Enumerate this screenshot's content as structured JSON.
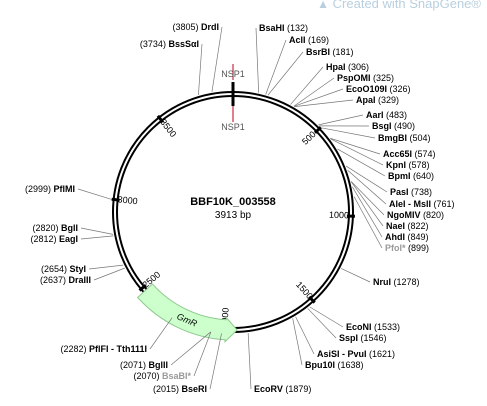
{
  "watermark": {
    "icon": "snapgene-logo-icon",
    "text": "Created with SnapGene®"
  },
  "plasmid": {
    "name": "BBF10K_003558",
    "size_text": "3913 bp",
    "length": 3913
  },
  "ticks": [
    {
      "pos": 500,
      "label": "500"
    },
    {
      "pos": 1000,
      "label": "1000"
    },
    {
      "pos": 1500,
      "label": "1500"
    },
    {
      "pos": 2000,
      "label": "2000"
    },
    {
      "pos": 2500,
      "label": "2500"
    },
    {
      "pos": 3000,
      "label": "3000"
    },
    {
      "pos": 3500,
      "label": "3500"
    }
  ],
  "features": [
    {
      "name": "GmR",
      "start": 1935,
      "end": 2480,
      "direction": "reverse",
      "color": "#ccffcc",
      "stroke": "#8fc98f"
    }
  ],
  "sites": [
    {
      "name": "NSP1",
      "pos": 0,
      "outside": true
    },
    {
      "name": "NSP1",
      "pos": 0,
      "outside": false
    }
  ],
  "site_color": "#c0001a",
  "enzymes": [
    {
      "id": "drdI",
      "name": "DrdI",
      "pos_text": "(3805)",
      "pos": 3805,
      "side": "left"
    },
    {
      "id": "bsssai",
      "name": "BssSαI",
      "pos_text": "(3734)",
      "pos": 3734,
      "side": "left"
    },
    {
      "id": "bsahi",
      "name": "BsaHI",
      "pos_text": "(132)",
      "pos": 132,
      "side": "right"
    },
    {
      "id": "acli",
      "name": "AclI",
      "pos_text": "(169)",
      "pos": 169,
      "side": "right"
    },
    {
      "id": "bsrbi",
      "name": "BsrBI",
      "pos_text": "(181)",
      "pos": 181,
      "side": "right"
    },
    {
      "id": "hpai",
      "name": "HpaI",
      "pos_text": "(306)",
      "pos": 306,
      "side": "right"
    },
    {
      "id": "psppomi",
      "name": "PspOMI",
      "pos_text": "(325)",
      "pos": 325,
      "side": "right"
    },
    {
      "id": "eco0109i",
      "name": "EcoO109I",
      "pos_text": "(326)",
      "pos": 326,
      "side": "right"
    },
    {
      "id": "apai",
      "name": "ApaI",
      "pos_text": "(329)",
      "pos": 329,
      "side": "right"
    },
    {
      "id": "aari",
      "name": "AarI",
      "pos_text": "(483)",
      "pos": 483,
      "side": "right"
    },
    {
      "id": "bsgi",
      "name": "BsgI",
      "pos_text": "(490)",
      "pos": 490,
      "side": "right"
    },
    {
      "id": "bmgbi",
      "name": "BmgBI",
      "pos_text": "(504)",
      "pos": 504,
      "side": "right"
    },
    {
      "id": "acc65i",
      "name": "Acc65I",
      "pos_text": "(574)",
      "pos": 574,
      "side": "right"
    },
    {
      "id": "kpni",
      "name": "KpnI",
      "pos_text": "(578)",
      "pos": 578,
      "side": "right"
    },
    {
      "id": "bpmi",
      "name": "BpmI",
      "pos_text": "(640)",
      "pos": 640,
      "side": "right"
    },
    {
      "id": "pasi",
      "name": "PasI",
      "pos_text": "(738)",
      "pos": 738,
      "side": "right"
    },
    {
      "id": "alei",
      "name": "AleI - MslI",
      "pos_text": "(761)",
      "pos": 761,
      "side": "right"
    },
    {
      "id": "ngomiv",
      "name": "NgoMIV",
      "pos_text": "(820)",
      "pos": 820,
      "side": "right"
    },
    {
      "id": "naei",
      "name": "NaeI",
      "pos_text": "(822)",
      "pos": 822,
      "side": "right"
    },
    {
      "id": "ahdi",
      "name": "AhdI",
      "pos_text": "(849)",
      "pos": 849,
      "side": "right"
    },
    {
      "id": "pfoi",
      "name": "PfoI*",
      "pos_text": "(899)",
      "pos": 899,
      "side": "right",
      "muted": true
    },
    {
      "id": "nrui",
      "name": "NruI",
      "pos_text": "(1278)",
      "pos": 1278,
      "side": "right"
    },
    {
      "id": "ecoNi",
      "name": "EcoNI",
      "pos_text": "(1533)",
      "pos": 1533,
      "side": "right"
    },
    {
      "id": "sspi",
      "name": "SspI",
      "pos_text": "(1546)",
      "pos": 1546,
      "side": "right"
    },
    {
      "id": "asisi",
      "name": "AsiSI - PvuI",
      "pos_text": "(1621)",
      "pos": 1621,
      "side": "right"
    },
    {
      "id": "bpu10i",
      "name": "Bpu10I",
      "pos_text": "(1638)",
      "pos": 1638,
      "side": "right"
    },
    {
      "id": "ecorv",
      "name": "EcoRV",
      "pos_text": "(1879)",
      "pos": 1879,
      "side": "right"
    },
    {
      "id": "bseri",
      "name": "BseRI",
      "pos_text": "(2015)",
      "pos": 2015,
      "side": "left"
    },
    {
      "id": "bsabi",
      "name": "BsaBI*",
      "pos_text": "(2070)",
      "pos": 2070,
      "side": "left",
      "muted": true
    },
    {
      "id": "bglii",
      "name": "BglII",
      "pos_text": "(2071)",
      "pos": 2071,
      "side": "left"
    },
    {
      "id": "pflfi",
      "name": "PflFI - Tth111I",
      "pos_text": "(2282)",
      "pos": 2282,
      "side": "left"
    },
    {
      "id": "draiii",
      "name": "DraIII",
      "pos_text": "(2637)",
      "pos": 2637,
      "side": "left"
    },
    {
      "id": "styi",
      "name": "StyI",
      "pos_text": "(2654)",
      "pos": 2654,
      "side": "left"
    },
    {
      "id": "eagi",
      "name": "EagI",
      "pos_text": "(2812)",
      "pos": 2812,
      "side": "left"
    },
    {
      "id": "bgli",
      "name": "BglI",
      "pos_text": "(2820)",
      "pos": 2820,
      "side": "left"
    },
    {
      "id": "pflmi",
      "name": "PflMI",
      "pos_text": "(2999)",
      "pos": 2999,
      "side": "left"
    }
  ]
}
